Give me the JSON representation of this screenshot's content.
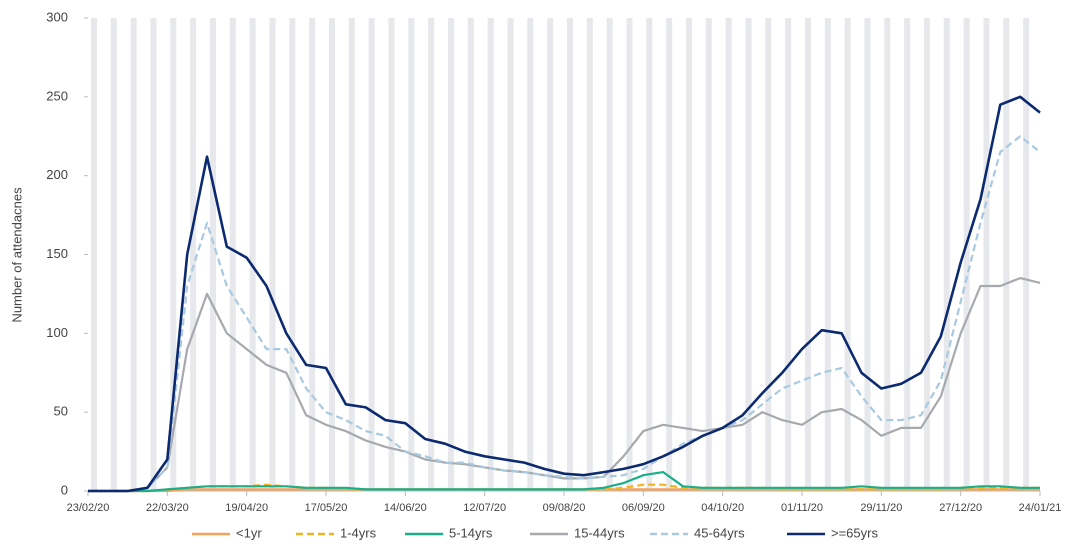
{
  "chart_data": {
    "type": "line",
    "y_label": "Number of attendacnes",
    "x": [
      "23/02/20",
      "01/03/20",
      "08/03/20",
      "15/03/20",
      "22/03/20",
      "29/03/20",
      "05/04/20",
      "12/04/20",
      "19/04/20",
      "26/04/20",
      "03/05/20",
      "10/05/20",
      "17/05/20",
      "24/05/20",
      "31/05/20",
      "07/06/20",
      "14/06/20",
      "21/06/20",
      "28/06/20",
      "05/07/20",
      "12/07/20",
      "19/07/20",
      "26/07/20",
      "02/08/20",
      "09/08/20",
      "16/08/20",
      "23/08/20",
      "30/08/20",
      "06/09/20",
      "13/09/20",
      "20/09/20",
      "27/09/20",
      "04/10/20",
      "11/10/20",
      "18/10/20",
      "25/10/20",
      "01/11/20",
      "08/11/20",
      "15/11/20",
      "22/11/20",
      "29/11/20",
      "06/12/20",
      "13/12/20",
      "20/12/20",
      "27/12/20",
      "03/01/21",
      "10/01/21",
      "17/01/21",
      "24/01/21"
    ],
    "xlim": [
      "23/02/20",
      "24/01/21"
    ],
    "xticks": [
      "23/02/20",
      "22/03/20",
      "19/04/20",
      "17/05/20",
      "14/06/20",
      "12/07/20",
      "09/08/20",
      "06/09/20",
      "04/10/20",
      "01/11/20",
      "29/11/20",
      "27/12/20",
      "24/01/21"
    ],
    "ylim": [
      0,
      300
    ],
    "yticks": [
      0,
      50,
      100,
      150,
      200,
      250,
      300
    ],
    "series": [
      {
        "name": "<1yr",
        "color": "#f7a15a",
        "style": "solid",
        "values": [
          0,
          0,
          0,
          0,
          0,
          1,
          1,
          1,
          1,
          1,
          1,
          1,
          1,
          1,
          1,
          1,
          1,
          1,
          1,
          1,
          1,
          1,
          1,
          1,
          1,
          1,
          1,
          1,
          1,
          1,
          1,
          1,
          1,
          1,
          1,
          1,
          1,
          1,
          1,
          1,
          1,
          1,
          1,
          1,
          1,
          1,
          1,
          1,
          1
        ]
      },
      {
        "name": "1-4yrs",
        "color": "#f0b323",
        "style": "dashed",
        "values": [
          0,
          0,
          0,
          0,
          1,
          2,
          3,
          3,
          3,
          4,
          3,
          2,
          2,
          1,
          1,
          1,
          1,
          1,
          1,
          1,
          1,
          1,
          1,
          1,
          1,
          1,
          1,
          2,
          4,
          4,
          2,
          2,
          2,
          2,
          2,
          1,
          1,
          1,
          1,
          1,
          1,
          1,
          1,
          1,
          2,
          2,
          2,
          2,
          2
        ]
      },
      {
        "name": "5-14yrs",
        "color": "#1aaf8b",
        "style": "solid",
        "values": [
          0,
          0,
          0,
          0,
          1,
          2,
          3,
          3,
          3,
          3,
          3,
          2,
          2,
          2,
          1,
          1,
          1,
          1,
          1,
          1,
          1,
          1,
          1,
          1,
          1,
          1,
          2,
          5,
          10,
          12,
          3,
          2,
          2,
          2,
          2,
          2,
          2,
          2,
          2,
          3,
          2,
          2,
          2,
          2,
          2,
          3,
          3,
          2,
          2
        ]
      },
      {
        "name": "15-44yrs",
        "color": "#a6a9ad",
        "style": "solid",
        "values": [
          0,
          0,
          0,
          2,
          15,
          90,
          125,
          100,
          90,
          80,
          75,
          48,
          42,
          38,
          32,
          28,
          25,
          20,
          18,
          17,
          15,
          13,
          12,
          10,
          8,
          8,
          9,
          22,
          38,
          42,
          40,
          38,
          40,
          42,
          50,
          45,
          42,
          50,
          52,
          45,
          35,
          40,
          40,
          60,
          100,
          130,
          130,
          135,
          132
        ]
      },
      {
        "name": "45-64yrs",
        "color": "#a9c9e1",
        "style": "dashed",
        "values": [
          0,
          0,
          0,
          2,
          15,
          130,
          170,
          130,
          110,
          90,
          90,
          65,
          50,
          45,
          38,
          35,
          25,
          22,
          18,
          18,
          15,
          13,
          12,
          10,
          9,
          8,
          9,
          10,
          14,
          22,
          30,
          35,
          40,
          45,
          55,
          65,
          70,
          75,
          78,
          60,
          45,
          45,
          48,
          70,
          120,
          170,
          215,
          225,
          215
        ]
      },
      {
        "name": ">=65yrs",
        "color": "#0b2a6f",
        "style": "solid",
        "values": [
          0,
          0,
          0,
          2,
          20,
          150,
          212,
          155,
          148,
          130,
          100,
          80,
          78,
          55,
          53,
          45,
          43,
          33,
          30,
          25,
          22,
          20,
          18,
          14,
          11,
          10,
          12,
          14,
          17,
          22,
          28,
          35,
          40,
          48,
          62,
          75,
          90,
          102,
          100,
          75,
          65,
          68,
          75,
          98,
          145,
          185,
          245,
          250,
          240
        ]
      }
    ]
  }
}
